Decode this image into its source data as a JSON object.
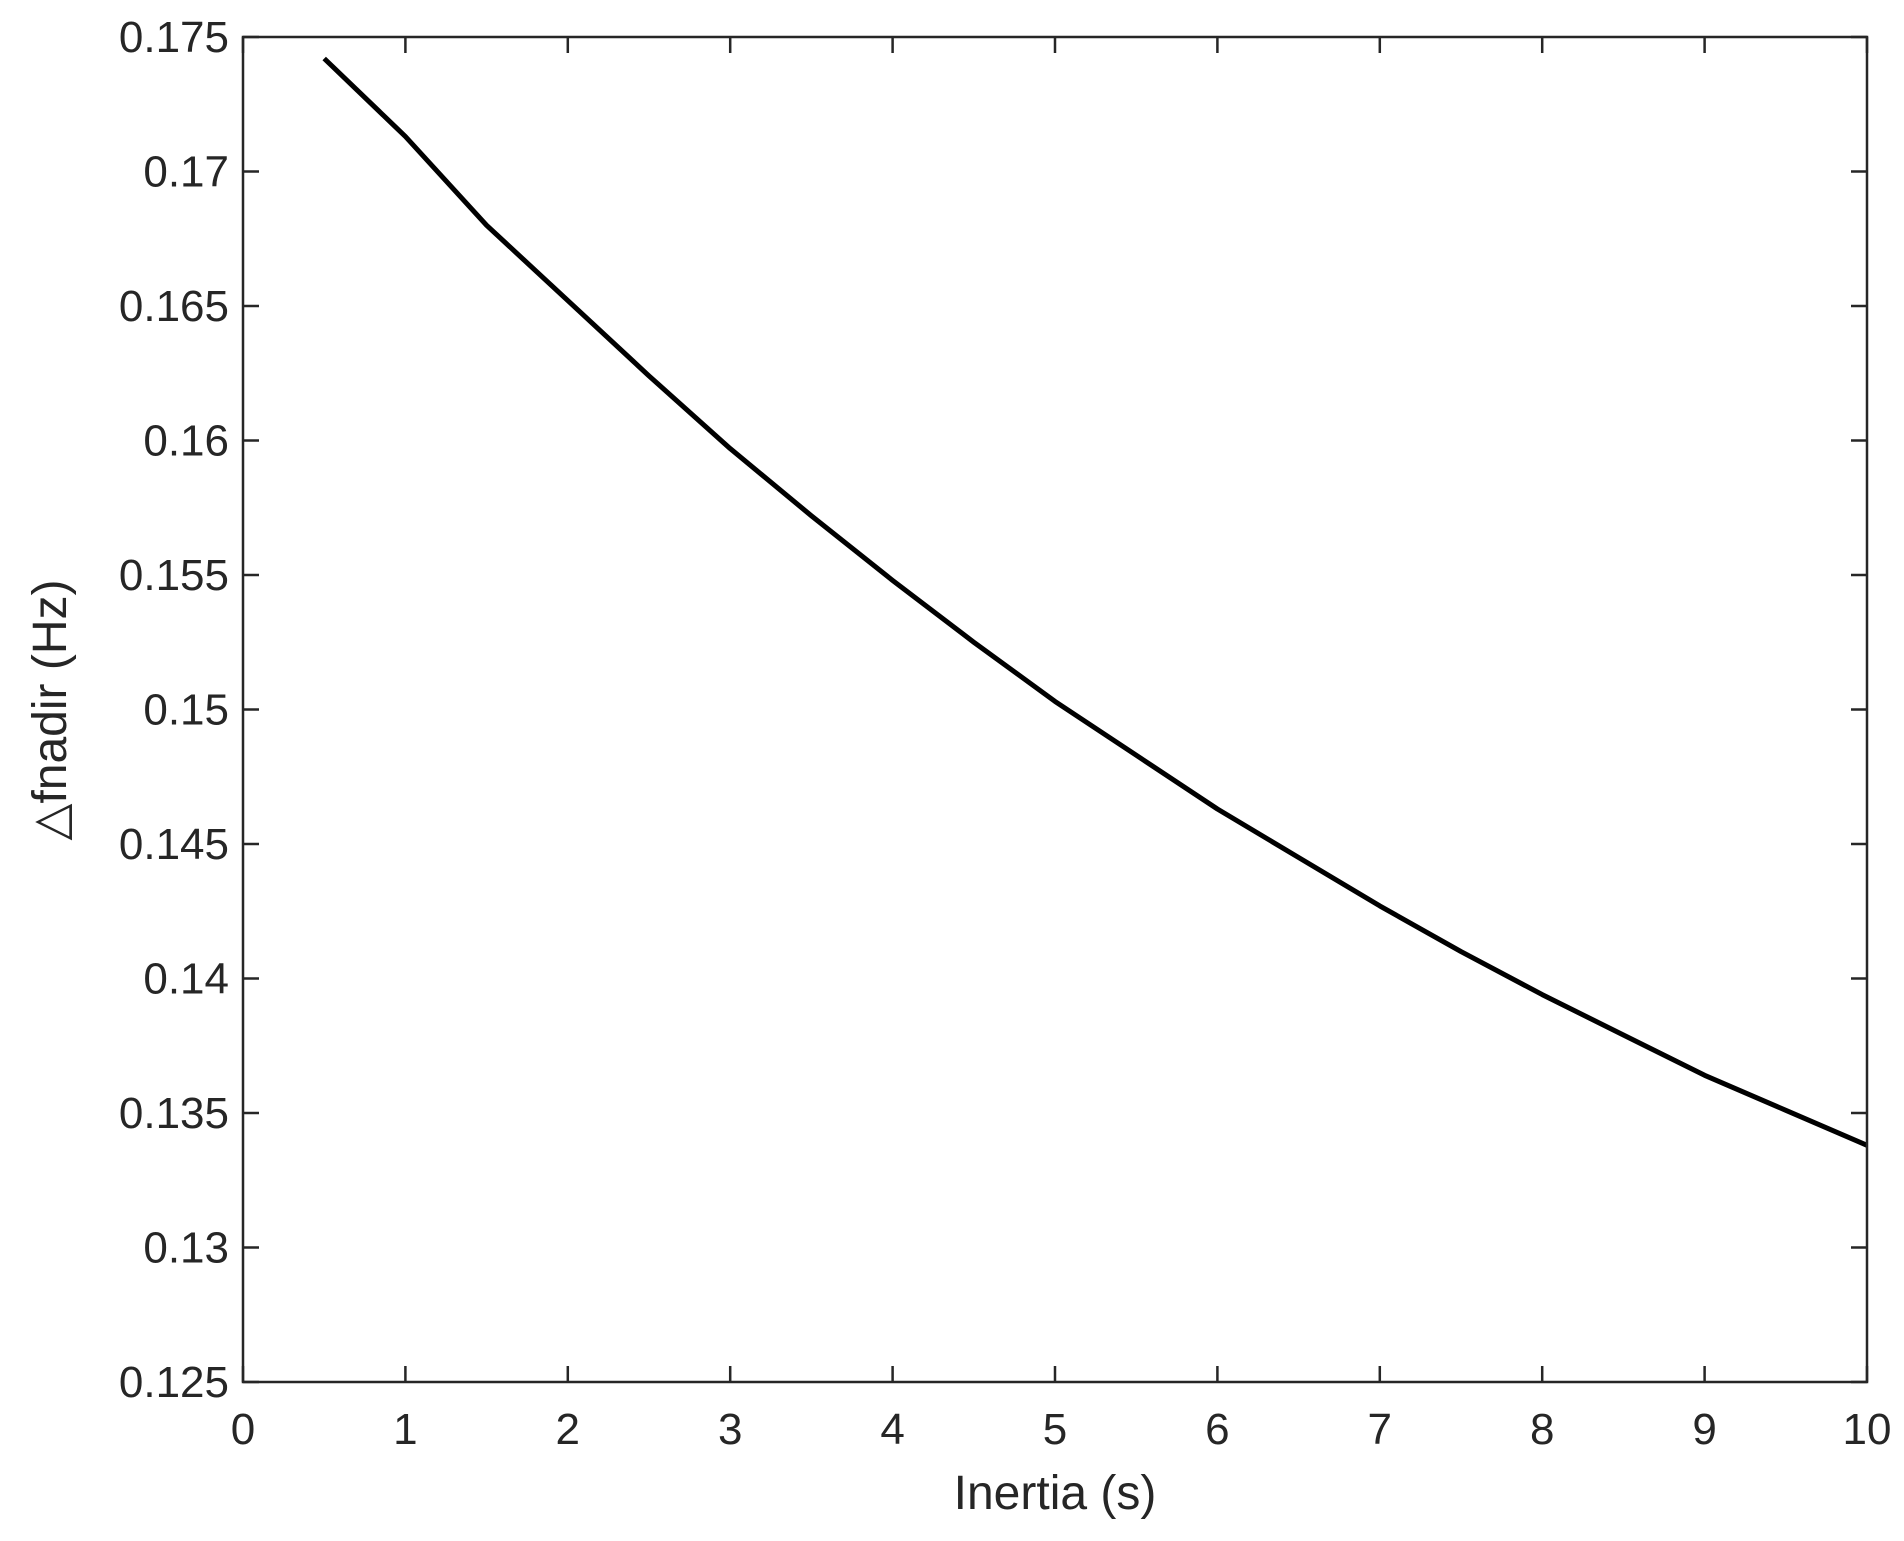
{
  "chart_data": {
    "type": "line",
    "title": "",
    "xlabel": "Inertia (s)",
    "ylabel": "△fnadir (Hz)",
    "xlim": [
      0,
      10
    ],
    "ylim": [
      0.125,
      0.175
    ],
    "xticks": [
      0,
      1,
      2,
      3,
      4,
      5,
      6,
      7,
      8,
      9,
      10
    ],
    "xtick_labels": [
      "0",
      "1",
      "2",
      "3",
      "4",
      "5",
      "6",
      "7",
      "8",
      "9",
      "10"
    ],
    "yticks": [
      0.125,
      0.13,
      0.135,
      0.14,
      0.145,
      0.15,
      0.155,
      0.16,
      0.165,
      0.17,
      0.175
    ],
    "ytick_labels": [
      "0.125",
      "0.13",
      "0.135",
      "0.14",
      "0.145",
      "0.15",
      "0.155",
      "0.16",
      "0.165",
      "0.17",
      "0.175"
    ],
    "grid": false,
    "legend": false,
    "series": [
      {
        "color": "#000000",
        "x": [
          0.5,
          1,
          1.5,
          2,
          2.5,
          3,
          3.5,
          4,
          4.5,
          5,
          5.5,
          6,
          6.5,
          7,
          7.5,
          8,
          8.5,
          9,
          9.5,
          10
        ],
        "y": [
          0.1742,
          0.1713,
          0.168,
          0.1652,
          0.1624,
          0.1597,
          0.1572,
          0.1548,
          0.1525,
          0.1503,
          0.1483,
          0.1463,
          0.1445,
          0.1427,
          0.141,
          0.1394,
          0.1379,
          0.1364,
          0.1351,
          0.1338
        ]
      }
    ]
  }
}
